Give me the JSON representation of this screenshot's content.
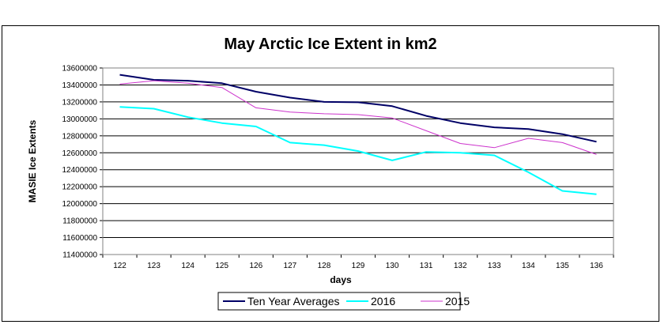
{
  "chart_data": {
    "type": "line",
    "title": "May Arctic Ice Extent in km2",
    "xlabel": "days",
    "ylabel": "MASIE Ice Extents",
    "x": [
      122,
      123,
      124,
      125,
      126,
      127,
      128,
      129,
      130,
      131,
      132,
      133,
      134,
      135,
      136
    ],
    "ylim": [
      11400000,
      13600000
    ],
    "yticks": [
      "11400000",
      "11600000",
      "11800000",
      "12000000",
      "12200000",
      "12400000",
      "12600000",
      "12800000",
      "13000000",
      "13200000",
      "13400000",
      "13600000"
    ],
    "grid": true,
    "legend_position": "bottom",
    "series": [
      {
        "name": "Ten Year Averages",
        "color": "#000066",
        "values": [
          13520000,
          13460000,
          13450000,
          13420000,
          13320000,
          13250000,
          13200000,
          13195000,
          13150000,
          13035000,
          12950000,
          12900000,
          12880000,
          12820000,
          12730000
        ]
      },
      {
        "name": "2016",
        "color": "#00FFFF",
        "values": [
          13140000,
          13120000,
          13020000,
          12950000,
          12910000,
          12720000,
          12690000,
          12620000,
          12510000,
          12610000,
          12600000,
          12570000,
          12370000,
          12150000,
          12110000
        ]
      },
      {
        "name": "2015",
        "color": "#CC33CC",
        "values": [
          13410000,
          13450000,
          13420000,
          13370000,
          13130000,
          13080000,
          13060000,
          13050000,
          13010000,
          12860000,
          12710000,
          12660000,
          12770000,
          12720000,
          12580000
        ]
      }
    ]
  }
}
